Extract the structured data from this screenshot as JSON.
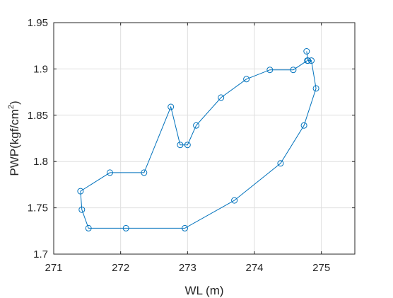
{
  "chart_data": {
    "type": "line",
    "xlabel": "WL (m)",
    "ylabel": "PWP(kgf/cm",
    "ylabel_superscript": "2",
    "ylabel_suffix": ")",
    "xlim": [
      271,
      275.5
    ],
    "ylim": [
      1.7,
      1.95
    ],
    "xticks": [
      271,
      272,
      273,
      274,
      275
    ],
    "xtick_labels": [
      "271",
      "272",
      "273",
      "274",
      "275"
    ],
    "yticks": [
      1.7,
      1.75,
      1.8,
      1.85,
      1.9,
      1.95
    ],
    "ytick_labels": [
      "1.7",
      "1.75",
      "1.8",
      "1.85",
      "1.9",
      "1.95"
    ],
    "grid": true,
    "line_color": "#0072BD",
    "marker": "circle",
    "series": [
      {
        "x": [
          274.78,
          274.8,
          274.85,
          274.92,
          274.74,
          274.39,
          273.7,
          272.96,
          272.08,
          271.52,
          271.42,
          271.4,
          271.84,
          272.35,
          272.75,
          272.89,
          273.0,
          273.13,
          273.5,
          273.88,
          274.23,
          274.58,
          274.79
        ],
        "y": [
          1.919,
          1.909,
          1.909,
          1.879,
          1.839,
          1.798,
          1.758,
          1.728,
          1.728,
          1.728,
          1.748,
          1.768,
          1.788,
          1.788,
          1.859,
          1.818,
          1.818,
          1.839,
          1.869,
          1.889,
          1.899,
          1.899,
          1.909
        ]
      }
    ]
  }
}
